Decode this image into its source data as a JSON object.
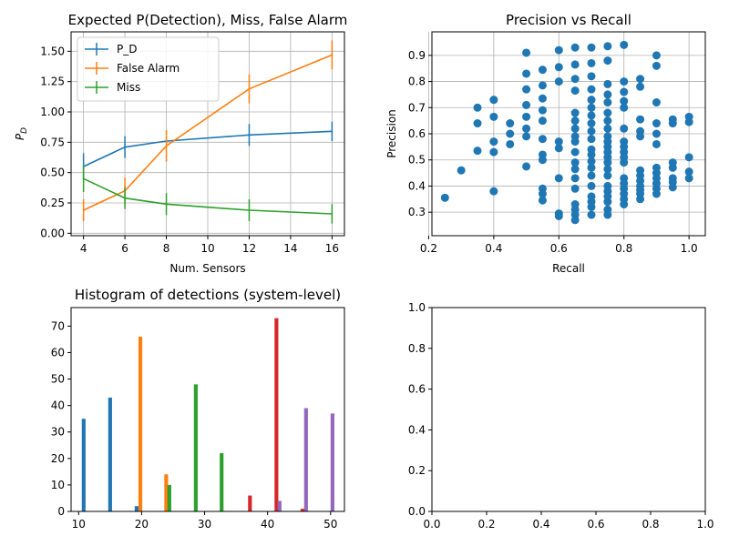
{
  "chart_data": [
    {
      "type": "line",
      "title": "Expected P(Detection), Miss, False Alarm",
      "xlabel": "Num. Sensors",
      "ylabel_main": "P",
      "ylabel_sub": "D",
      "xlim": [
        3.4,
        16.6
      ],
      "ylim": [
        -0.02,
        1.66
      ],
      "xticks": [
        4,
        6,
        8,
        10,
        12,
        14,
        16
      ],
      "yticks": [
        "0.00",
        "0.25",
        "0.50",
        "0.75",
        "1.00",
        "1.25",
        "1.50"
      ],
      "grid": true,
      "legend_position": "upper-left",
      "x": [
        4,
        6,
        8,
        12,
        16
      ],
      "series": [
        {
          "name": "P_D",
          "color": "#1f77b4",
          "values": [
            0.55,
            0.71,
            0.76,
            0.81,
            0.84
          ],
          "errors": [
            0.11,
            0.09,
            null,
            0.09,
            0.08
          ]
        },
        {
          "name": "False Alarm",
          "color": "#ff7f0e",
          "values": [
            0.19,
            0.35,
            0.72,
            1.19,
            1.47
          ],
          "errors": [
            0.09,
            0.11,
            0.13,
            0.12,
            0.12
          ]
        },
        {
          "name": "Miss",
          "color": "#2ca02c",
          "values": [
            0.45,
            0.29,
            0.24,
            0.19,
            0.16
          ],
          "errors": [
            0.11,
            0.09,
            0.09,
            0.09,
            0.08
          ]
        }
      ]
    },
    {
      "type": "scatter",
      "title": "Precision vs Recall",
      "xlabel": "Recall",
      "ylabel": "Precision",
      "xlim": [
        0.21,
        1.05
      ],
      "ylim": [
        0.21,
        0.99
      ],
      "xticks": [
        "0.2",
        "0.4",
        "0.6",
        "0.8",
        "1.0"
      ],
      "yticks": [
        "0.3",
        "0.4",
        "0.5",
        "0.6",
        "0.7",
        "0.8",
        "0.9"
      ],
      "grid": true,
      "color": "#1f77b4",
      "points": [
        [
          0.25,
          0.355
        ],
        [
          0.3,
          0.46
        ],
        [
          0.35,
          0.7
        ],
        [
          0.35,
          0.64
        ],
        [
          0.35,
          0.535
        ],
        [
          0.4,
          0.73
        ],
        [
          0.4,
          0.665
        ],
        [
          0.4,
          0.57
        ],
        [
          0.4,
          0.53
        ],
        [
          0.4,
          0.38
        ],
        [
          0.45,
          0.64
        ],
        [
          0.45,
          0.6
        ],
        [
          0.45,
          0.56
        ],
        [
          0.5,
          0.91
        ],
        [
          0.5,
          0.83
        ],
        [
          0.5,
          0.77
        ],
        [
          0.5,
          0.71
        ],
        [
          0.5,
          0.665
        ],
        [
          0.5,
          0.62
        ],
        [
          0.5,
          0.59
        ],
        [
          0.5,
          0.475
        ],
        [
          0.55,
          0.845
        ],
        [
          0.55,
          0.785
        ],
        [
          0.55,
          0.735
        ],
        [
          0.55,
          0.69
        ],
        [
          0.55,
          0.65
        ],
        [
          0.55,
          0.58
        ],
        [
          0.55,
          0.52
        ],
        [
          0.55,
          0.5
        ],
        [
          0.55,
          0.39
        ],
        [
          0.55,
          0.37
        ],
        [
          0.55,
          0.345
        ],
        [
          0.6,
          0.92
        ],
        [
          0.6,
          0.855
        ],
        [
          0.6,
          0.8
        ],
        [
          0.6,
          0.57
        ],
        [
          0.6,
          0.545
        ],
        [
          0.6,
          0.43
        ],
        [
          0.6,
          0.295
        ],
        [
          0.6,
          0.285
        ],
        [
          0.65,
          0.93
        ],
        [
          0.65,
          0.865
        ],
        [
          0.65,
          0.81
        ],
        [
          0.65,
          0.765
        ],
        [
          0.65,
          0.68
        ],
        [
          0.65,
          0.65
        ],
        [
          0.65,
          0.62
        ],
        [
          0.65,
          0.59
        ],
        [
          0.65,
          0.57
        ],
        [
          0.65,
          0.53
        ],
        [
          0.65,
          0.49
        ],
        [
          0.65,
          0.465
        ],
        [
          0.65,
          0.43
        ],
        [
          0.65,
          0.39
        ],
        [
          0.65,
          0.33
        ],
        [
          0.65,
          0.31
        ],
        [
          0.65,
          0.29
        ],
        [
          0.65,
          0.27
        ],
        [
          0.7,
          0.93
        ],
        [
          0.7,
          0.87
        ],
        [
          0.7,
          0.82
        ],
        [
          0.7,
          0.77
        ],
        [
          0.7,
          0.73
        ],
        [
          0.7,
          0.7
        ],
        [
          0.7,
          0.67
        ],
        [
          0.7,
          0.64
        ],
        [
          0.7,
          0.61
        ],
        [
          0.7,
          0.58
        ],
        [
          0.7,
          0.54
        ],
        [
          0.7,
          0.52
        ],
        [
          0.7,
          0.495
        ],
        [
          0.7,
          0.47
        ],
        [
          0.7,
          0.44
        ],
        [
          0.7,
          0.4
        ],
        [
          0.7,
          0.36
        ],
        [
          0.7,
          0.34
        ],
        [
          0.7,
          0.32
        ],
        [
          0.7,
          0.29
        ],
        [
          0.75,
          0.935
        ],
        [
          0.75,
          0.88
        ],
        [
          0.75,
          0.79
        ],
        [
          0.75,
          0.75
        ],
        [
          0.75,
          0.72
        ],
        [
          0.75,
          0.68
        ],
        [
          0.75,
          0.65
        ],
        [
          0.75,
          0.62
        ],
        [
          0.75,
          0.59
        ],
        [
          0.75,
          0.57
        ],
        [
          0.75,
          0.55
        ],
        [
          0.75,
          0.53
        ],
        [
          0.75,
          0.51
        ],
        [
          0.75,
          0.49
        ],
        [
          0.75,
          0.465
        ],
        [
          0.75,
          0.44
        ],
        [
          0.75,
          0.4
        ],
        [
          0.75,
          0.38
        ],
        [
          0.75,
          0.36
        ],
        [
          0.75,
          0.34
        ],
        [
          0.75,
          0.31
        ],
        [
          0.75,
          0.29
        ],
        [
          0.8,
          0.94
        ],
        [
          0.8,
          0.8
        ],
        [
          0.8,
          0.76
        ],
        [
          0.8,
          0.725
        ],
        [
          0.8,
          0.7
        ],
        [
          0.8,
          0.62
        ],
        [
          0.8,
          0.57
        ],
        [
          0.8,
          0.55
        ],
        [
          0.8,
          0.53
        ],
        [
          0.8,
          0.51
        ],
        [
          0.8,
          0.49
        ],
        [
          0.8,
          0.43
        ],
        [
          0.8,
          0.41
        ],
        [
          0.8,
          0.39
        ],
        [
          0.8,
          0.37
        ],
        [
          0.8,
          0.35
        ],
        [
          0.8,
          0.33
        ],
        [
          0.85,
          0.81
        ],
        [
          0.85,
          0.78
        ],
        [
          0.85,
          0.655
        ],
        [
          0.85,
          0.61
        ],
        [
          0.85,
          0.59
        ],
        [
          0.85,
          0.46
        ],
        [
          0.85,
          0.44
        ],
        [
          0.85,
          0.42
        ],
        [
          0.85,
          0.4
        ],
        [
          0.85,
          0.385
        ],
        [
          0.85,
          0.37
        ],
        [
          0.85,
          0.35
        ],
        [
          0.9,
          0.9
        ],
        [
          0.9,
          0.86
        ],
        [
          0.9,
          0.72
        ],
        [
          0.9,
          0.64
        ],
        [
          0.9,
          0.6
        ],
        [
          0.9,
          0.56
        ],
        [
          0.9,
          0.47
        ],
        [
          0.9,
          0.45
        ],
        [
          0.9,
          0.43
        ],
        [
          0.9,
          0.41
        ],
        [
          0.9,
          0.39
        ],
        [
          0.9,
          0.37
        ],
        [
          0.95,
          0.655
        ],
        [
          0.95,
          0.64
        ],
        [
          0.95,
          0.49
        ],
        [
          0.95,
          0.47
        ],
        [
          0.95,
          0.43
        ],
        [
          0.95,
          0.415
        ],
        [
          0.95,
          0.395
        ],
        [
          1.0,
          0.665
        ],
        [
          1.0,
          0.645
        ],
        [
          1.0,
          0.51
        ],
        [
          1.0,
          0.455
        ],
        [
          1.0,
          0.43
        ]
      ]
    },
    {
      "type": "bar",
      "title": "Histogram of detections (system-level)",
      "xlim": [
        8.8,
        52.2
      ],
      "ylim": [
        0,
        77
      ],
      "xticks": [
        10,
        20,
        30,
        40,
        50
      ],
      "yticks": [
        0,
        10,
        20,
        30,
        40,
        50,
        60,
        70
      ],
      "grid": false,
      "bar_width": 0.6,
      "series": [
        {
          "color": "#1f77b4",
          "x": [
            10.8,
            15.0,
            19.2
          ],
          "values": [
            35,
            43,
            2
          ]
        },
        {
          "color": "#ff7f0e",
          "x": [
            19.8,
            23.9,
            45.5
          ],
          "values": [
            66,
            14,
            1
          ]
        },
        {
          "color": "#2ca02c",
          "x": [
            24.4,
            28.6,
            32.7
          ],
          "values": [
            10,
            48,
            22
          ]
        },
        {
          "color": "#d62728",
          "x": [
            37.2,
            41.4,
            45.6
          ],
          "values": [
            6,
            73,
            1
          ]
        },
        {
          "color": "#9467bd",
          "x": [
            41.9,
            46.1,
            50.3
          ],
          "values": [
            4,
            39,
            37
          ]
        }
      ]
    },
    {
      "type": "empty",
      "xlim": [
        0,
        1
      ],
      "ylim": [
        0,
        1
      ],
      "xticks": [
        "0.0",
        "0.2",
        "0.4",
        "0.6",
        "0.8",
        "1.0"
      ],
      "yticks": [
        "0.0",
        "0.2",
        "0.4",
        "0.6",
        "0.8",
        "1.0"
      ],
      "grid": false
    }
  ]
}
